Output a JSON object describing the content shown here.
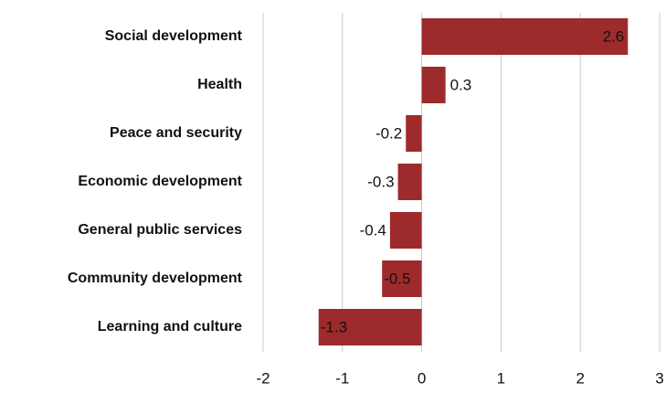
{
  "chart_data": {
    "type": "hbar",
    "categories": [
      "Social development",
      "Health",
      "Peace and security",
      "Economic development",
      "General public services",
      "Community development",
      "Learning and culture"
    ],
    "values": [
      2.6,
      0.3,
      -0.2,
      -0.3,
      -0.4,
      -0.5,
      -1.3
    ],
    "color": "#9e2b2b",
    "xlim": [
      -2,
      3
    ],
    "xticks": [
      -2,
      -1,
      0,
      1,
      2,
      3
    ],
    "grid": true
  }
}
